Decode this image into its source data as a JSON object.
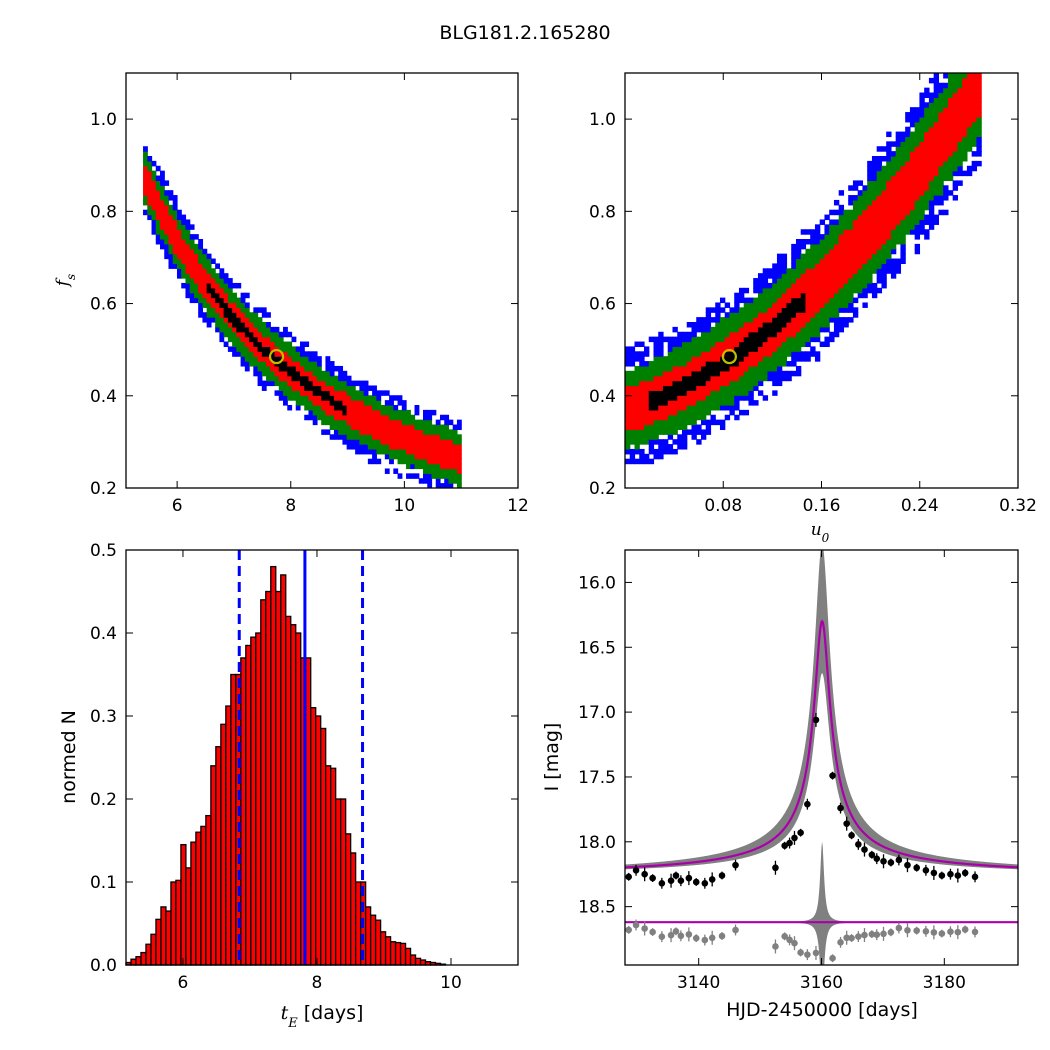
{
  "figure_title": "BLG181.2.165280",
  "colors": {
    "sigma3": "#0000ff",
    "sigma2": "#008000",
    "sigma1": "#ff0000",
    "core": "#000000",
    "best_fit_marker": "#bfbf00",
    "hist_bar": "#ff0000",
    "hist_edge": "#000000",
    "median_line": "#0000ff",
    "model_curve": "#aa00aa",
    "model_band": "#808080",
    "data_points": "#000000",
    "residual_points": "#808080"
  },
  "chart_data": [
    {
      "id": "fs-vs-tE",
      "type": "heatmap",
      "title": "",
      "xlabel": "",
      "ylabel": "f_s",
      "xlim": [
        5.1,
        12
      ],
      "ylim": [
        0.2,
        1.1
      ],
      "xticks": [
        6,
        8,
        10,
        12
      ],
      "yticks": [
        0.2,
        0.4,
        0.6,
        0.8,
        1.0
      ],
      "relation": {
        "form": "f_s = a * t_E^b",
        "a": 15.5,
        "b": -1.7
      },
      "x_range": [
        5.4,
        11.0
      ],
      "confidence_regions": [
        "1-sigma",
        "2-sigma",
        "3-sigma"
      ],
      "best_fit": {
        "x": 7.75,
        "y": 0.485
      }
    },
    {
      "id": "fs-vs-u0",
      "type": "heatmap",
      "title": "",
      "xlabel": "u_0",
      "ylabel": "",
      "xlim": [
        0.0,
        0.32
      ],
      "ylim": [
        0.2,
        1.1
      ],
      "xticks": [
        0.08,
        0.16,
        0.24,
        0.32
      ],
      "yticks": [
        0.2,
        0.4,
        0.6,
        0.8,
        1.0
      ],
      "relation": {
        "form": "f_s = c0 + c1*u0 + c2*u0^2",
        "c0": 0.37,
        "c1": 0.8,
        "c2": 5.7
      },
      "x_range": [
        0.0,
        0.29
      ],
      "confidence_regions": [
        "1-sigma",
        "2-sigma",
        "3-sigma"
      ],
      "best_fit": {
        "x": 0.085,
        "y": 0.485
      }
    },
    {
      "id": "tE-histogram",
      "type": "bar",
      "title": "",
      "xlabel": "t_E [days]",
      "ylabel": "normed N",
      "xlim": [
        5.15,
        11.0
      ],
      "ylim": [
        0.0,
        0.5
      ],
      "xticks": [
        6,
        8,
        10
      ],
      "yticks": [
        0.0,
        0.1,
        0.2,
        0.3,
        0.4,
        0.5
      ],
      "bin_start": 5.15,
      "bin_width": 0.0745,
      "values": [
        0.003,
        0.007,
        0.01,
        0.015,
        0.025,
        0.037,
        0.055,
        0.07,
        0.065,
        0.1,
        0.102,
        0.145,
        0.117,
        0.148,
        0.16,
        0.167,
        0.18,
        0.24,
        0.263,
        0.29,
        0.312,
        0.35,
        0.35,
        0.37,
        0.385,
        0.395,
        0.4,
        0.44,
        0.45,
        0.48,
        0.45,
        0.47,
        0.42,
        0.41,
        0.4,
        0.37,
        0.37,
        0.31,
        0.3,
        0.285,
        0.24,
        0.237,
        0.2,
        0.2,
        0.158,
        0.135,
        0.1,
        0.1,
        0.07,
        0.06,
        0.054,
        0.04,
        0.034,
        0.028,
        0.027,
        0.026,
        0.02,
        0.012,
        0.008,
        0.006,
        0.004,
        0.003,
        0.002,
        0.001
      ],
      "median": 7.82,
      "credible_interval": [
        6.84,
        8.68
      ]
    },
    {
      "id": "light-curve",
      "type": "scatter",
      "title": "",
      "xlabel": "HJD-2450000 [days]",
      "ylabel": "I [mag]",
      "xlim": [
        3128,
        3192
      ],
      "ylim": [
        18.95,
        15.75
      ],
      "xticks": [
        3140,
        3160,
        3180
      ],
      "yticks": [
        16.0,
        16.5,
        17.0,
        17.5,
        18.0,
        18.5
      ],
      "model": {
        "t0": 3160.1,
        "baseline_mag": 18.27,
        "peak_mag": 16.3,
        "band_peak_mag": 15.7,
        "width_days": 1.5
      },
      "residual_offset_mag": 18.62,
      "observations": [
        [
          3128.6,
          18.27
        ],
        [
          3129.8,
          18.22
        ],
        [
          3131.2,
          18.25
        ],
        [
          3132.5,
          18.28
        ],
        [
          3134.0,
          18.32
        ],
        [
          3135.5,
          18.3
        ],
        [
          3136.3,
          18.26
        ],
        [
          3137.1,
          18.3
        ],
        [
          3138.4,
          18.28
        ],
        [
          3139.6,
          18.31
        ],
        [
          3141.0,
          18.32
        ],
        [
          3142.2,
          18.29
        ],
        [
          3143.8,
          18.26
        ],
        [
          3146.0,
          18.18
        ],
        [
          3152.5,
          18.2
        ],
        [
          3154.0,
          18.03
        ],
        [
          3154.8,
          18.01
        ],
        [
          3155.6,
          17.97
        ],
        [
          3156.6,
          17.93
        ],
        [
          3157.7,
          17.71
        ],
        [
          3159.1,
          17.06
        ],
        [
          3161.8,
          17.49
        ],
        [
          3163.1,
          17.74
        ],
        [
          3164.1,
          17.86
        ],
        [
          3164.9,
          17.95
        ],
        [
          3166.0,
          18.02
        ],
        [
          3167.0,
          18.06
        ],
        [
          3168.2,
          18.1
        ],
        [
          3169.0,
          18.13
        ],
        [
          3170.1,
          18.15
        ],
        [
          3171.3,
          18.16
        ],
        [
          3172.6,
          18.14
        ],
        [
          3174.0,
          18.18
        ],
        [
          3175.5,
          18.2
        ],
        [
          3177.0,
          18.22
        ],
        [
          3178.3,
          18.24
        ],
        [
          3179.6,
          18.26
        ],
        [
          3181.0,
          18.25
        ],
        [
          3182.2,
          18.26
        ],
        [
          3183.4,
          18.24
        ],
        [
          3185.0,
          18.27
        ]
      ]
    }
  ]
}
